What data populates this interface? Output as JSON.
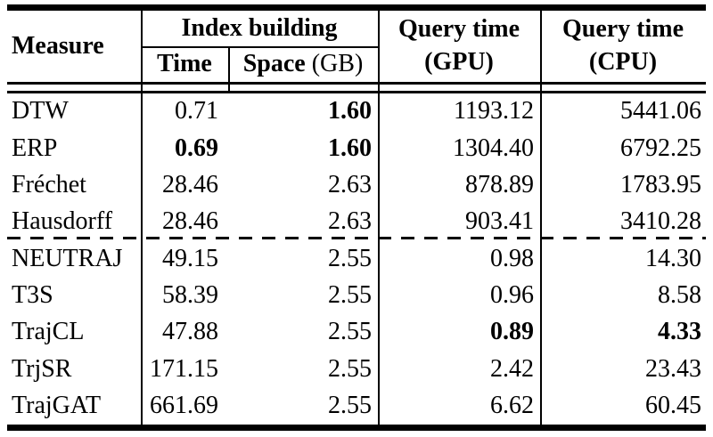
{
  "table": {
    "header": {
      "measure": "Measure",
      "index_building": "Index building",
      "time": "Time",
      "space_label": "Space",
      "space_unit": "(GB)",
      "gpu_line1": "Query time",
      "gpu_line2": "(GPU)",
      "cpu_line1": "Query time",
      "cpu_line2": "(CPU)"
    },
    "rows": [
      {
        "measure": "DTW",
        "time": "0.71",
        "space": "1.60",
        "gpu": "1193.12",
        "cpu": "5441.06"
      },
      {
        "measure": "ERP",
        "time": "0.69",
        "space": "1.60",
        "gpu": "1304.40",
        "cpu": "6792.25"
      },
      {
        "measure": "Fréchet",
        "time": "28.46",
        "space": "2.63",
        "gpu": "878.89",
        "cpu": "1783.95"
      },
      {
        "measure": "Hausdorff",
        "time": "28.46",
        "space": "2.63",
        "gpu": "903.41",
        "cpu": "3410.28"
      },
      {
        "measure": "NEUTRAJ",
        "time": "49.15",
        "space": "2.55",
        "gpu": "0.98",
        "cpu": "14.30"
      },
      {
        "measure": "T3S",
        "time": "58.39",
        "space": "2.55",
        "gpu": "0.96",
        "cpu": "8.58"
      },
      {
        "measure": "TrajCL",
        "time": "47.88",
        "space": "2.55",
        "gpu": "0.89",
        "cpu": "4.33"
      },
      {
        "measure": "TrjSR",
        "time": "171.15",
        "space": "2.55",
        "gpu": "2.42",
        "cpu": "23.43"
      },
      {
        "measure": "TrajGAT",
        "time": "661.69",
        "space": "2.55",
        "gpu": "6.62",
        "cpu": "60.45"
      }
    ],
    "bold_cells": [
      "rows.0.space",
      "rows.1.time",
      "rows.1.space",
      "rows.6.gpu",
      "rows.6.cpu"
    ],
    "colors": {
      "text": "#000000",
      "rule": "#000000",
      "background": "#ffffff"
    }
  }
}
